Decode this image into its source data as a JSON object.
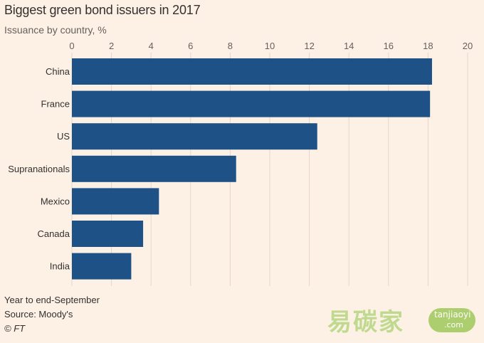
{
  "chart_data": {
    "type": "bar",
    "orientation": "horizontal",
    "title": "Biggest green bond issuers in 2017",
    "subtitle": "Issuance by country, %",
    "categories": [
      "China",
      "France",
      "US",
      "Supranationals",
      "Mexico",
      "Canada",
      "India"
    ],
    "values": [
      18.2,
      18.1,
      12.4,
      8.3,
      4.4,
      3.6,
      3.0
    ],
    "xlim": [
      0,
      20
    ],
    "xticks": [
      0,
      2,
      4,
      6,
      8,
      10,
      12,
      14,
      16,
      18,
      20
    ],
    "grid": true,
    "axis_position": "top",
    "bar_color": "#1e5287",
    "legend": "none"
  },
  "footer": {
    "note": "Year to end-September",
    "source": "Source: Moody's",
    "credit": "© FT"
  },
  "watermark": {
    "chinese": "易碳家",
    "line1": "tanjiaoyi",
    "line2": ".com"
  }
}
